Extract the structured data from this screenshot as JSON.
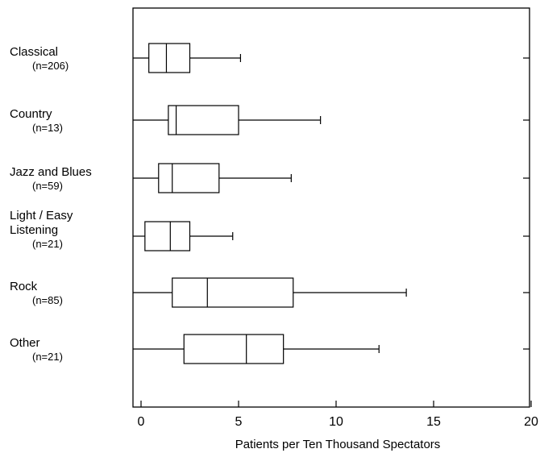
{
  "chart_data": {
    "type": "boxplot",
    "xlabel": "Patients per Ten Thousand Spectators",
    "xlim": [
      -0.4,
      20
    ],
    "xticks": [
      "0",
      "5",
      "10",
      "15",
      "20"
    ],
    "xtick_values": [
      0,
      5,
      10,
      15,
      20
    ],
    "grid": false,
    "series": [
      {
        "category": [
          "Classical"
        ],
        "n_label": "(n=206)",
        "min": -0.4,
        "q1": 0.4,
        "median": 1.3,
        "q3": 2.5,
        "max": 5.1
      },
      {
        "category": [
          "Country"
        ],
        "n_label": "(n=13)",
        "min": -0.4,
        "q1": 1.4,
        "median": 1.8,
        "q3": 5.0,
        "max": 9.2
      },
      {
        "category": [
          "Jazz and Blues"
        ],
        "n_label": "(n=59)",
        "min": -0.4,
        "q1": 0.9,
        "median": 1.6,
        "q3": 4.0,
        "max": 7.7
      },
      {
        "category": [
          "Light / Easy",
          "Listening"
        ],
        "n_label": "(n=21)",
        "min": -0.4,
        "q1": 0.2,
        "median": 1.5,
        "q3": 2.5,
        "max": 4.7
      },
      {
        "category": [
          "Rock"
        ],
        "n_label": "(n=85)",
        "min": -0.4,
        "q1": 1.6,
        "median": 3.4,
        "q3": 7.8,
        "max": 13.6
      },
      {
        "category": [
          "Other"
        ],
        "n_label": "(n=21)",
        "min": -0.4,
        "q1": 2.2,
        "median": 5.4,
        "q3": 7.3,
        "max": 12.2
      }
    ]
  }
}
